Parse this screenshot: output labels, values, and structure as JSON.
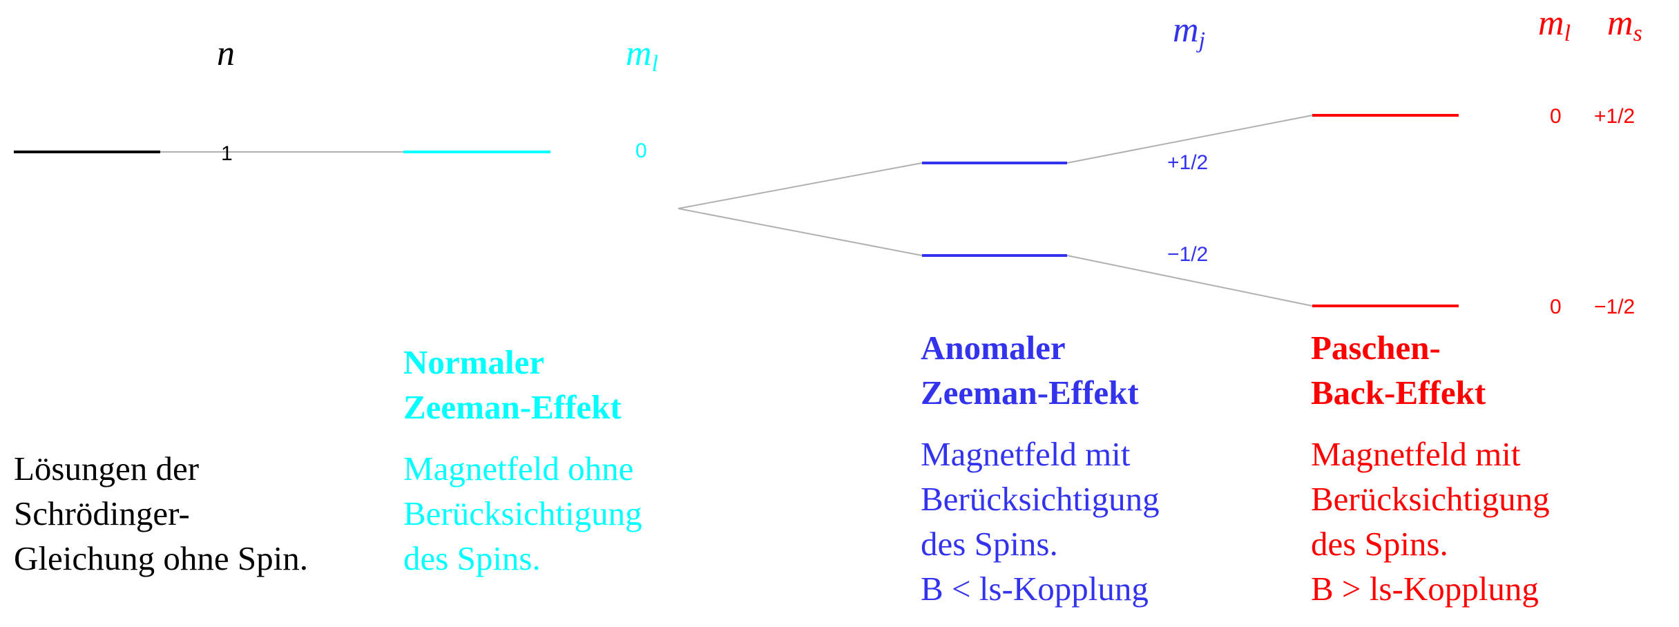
{
  "colors": {
    "black": "#000000",
    "cyan": "#00ffff",
    "blue": "#3333ee",
    "red": "#ff0000",
    "connector": "#b0b0b0"
  },
  "headers": {
    "n": {
      "base": "n",
      "sub": ""
    },
    "ml_cyan": {
      "base": "m",
      "sub": "l"
    },
    "mj": {
      "base": "m",
      "sub": "j"
    },
    "ml_red": {
      "base": "m",
      "sub": "l"
    },
    "ms_red": {
      "base": "m",
      "sub": "s"
    }
  },
  "levels": {
    "schroedinger": {
      "label": "1"
    },
    "normal_zeeman": {
      "label": "0"
    },
    "anomal_upper": {
      "label": "+1/2"
    },
    "anomal_lower": {
      "label": "−1/2"
    },
    "paschen_upper": {
      "ml": "0",
      "ms": "+1/2"
    },
    "paschen_lower": {
      "ml": "0",
      "ms": "−1/2"
    }
  },
  "columns": {
    "schroedinger": {
      "desc": [
        "Lösungen der",
        "Schrödinger-",
        "Gleichung ohne Spin."
      ]
    },
    "normal": {
      "title": [
        "Normaler",
        "Zeeman-Effekt"
      ],
      "desc": [
        "Magnetfeld ohne",
        "Berücksichtigung",
        "des Spins."
      ]
    },
    "anomal": {
      "title": [
        "Anomaler",
        "Zeeman-Effekt"
      ],
      "desc": [
        "Magnetfeld mit",
        "Berücksichtigung",
        "des Spins.",
        "B < ls-Kopplung"
      ]
    },
    "paschen": {
      "title": [
        "Paschen-",
        "Back-Effekt"
      ],
      "desc": [
        "Magnetfeld mit",
        "Berücksichtigung",
        "des Spins.",
        "B > ls-Kopplung"
      ]
    }
  }
}
